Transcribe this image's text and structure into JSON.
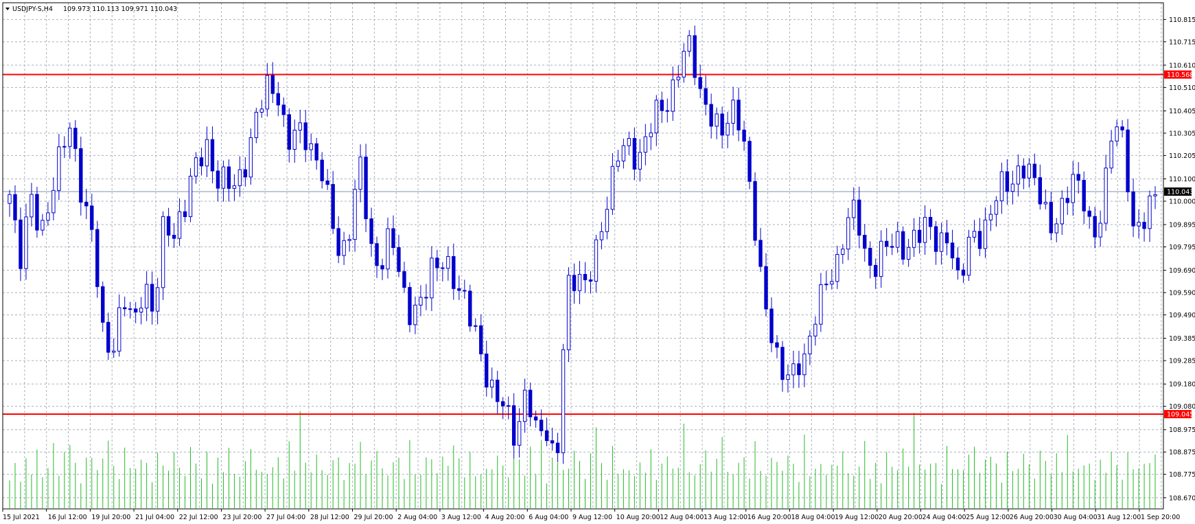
{
  "chart_data": {
    "type": "candlestick",
    "symbol_header": "USDJPY-S,H4",
    "ohlc_header": "109.973 110.113 109.971 110.043",
    "ylim": [
      108.62,
      110.89
    ],
    "y_ticks": [
      "110.815",
      "110.715",
      "110.610",
      "110.510",
      "110.405",
      "110.305",
      "110.205",
      "110.100",
      "110.000",
      "109.895",
      "109.795",
      "109.690",
      "109.590",
      "109.490",
      "109.385",
      "109.285",
      "109.180",
      "109.080",
      "108.975",
      "108.875",
      "108.775",
      "108.670"
    ],
    "x_labels": [
      "15 Jul 2021",
      "16 Jul 12:00",
      "19 Jul 20:00",
      "21 Jul 04:00",
      "22 Jul 12:00",
      "23 Jul 20:00",
      "27 Jul 04:00",
      "28 Jul 12:00",
      "29 Jul 20:00",
      "2 Aug 04:00",
      "3 Aug 12:00",
      "4 Aug 20:00",
      "6 Aug 04:00",
      "9 Aug 12:00",
      "10 Aug 20:00",
      "12 Aug 04:00",
      "13 Aug 12:00",
      "16 Aug 20:00",
      "18 Aug 04:00",
      "19 Aug 12:00",
      "20 Aug 20:00",
      "24 Aug 04:00",
      "25 Aug 12:00",
      "26 Aug 20:00",
      "30 Aug 04:00",
      "31 Aug 12:00",
      "1 Sep 20:00"
    ],
    "levels": [
      {
        "value": 110.568,
        "label": "110.568",
        "color": "#ff0000"
      },
      {
        "value": 109.045,
        "label": "109.045",
        "color": "#ff0000"
      }
    ],
    "current": {
      "value": 110.043,
      "label": "110.043",
      "color": "#8090b0"
    },
    "candle_color": "#0000cc",
    "volume_color": "#22bb22",
    "grid": true,
    "anchors": [
      110.0,
      109.75,
      110.05,
      109.8,
      110.05,
      110.25,
      110.3,
      110.05,
      109.85,
      109.4,
      109.35,
      109.55,
      109.45,
      109.65,
      109.45,
      109.95,
      109.85,
      109.95,
      110.2,
      110.25,
      110.05,
      110.15,
      110.05,
      110.15,
      110.45,
      110.5,
      110.45,
      110.3,
      110.3,
      110.25,
      110.2,
      109.95,
      109.75,
      109.9,
      110.15,
      109.8,
      109.7,
      109.85,
      109.65,
      109.45,
      109.55,
      109.75,
      109.7,
      109.65,
      109.6,
      109.4,
      109.25,
      109.15,
      109.05,
      108.95,
      109.15,
      108.95,
      109.0,
      108.8,
      109.6,
      109.7,
      109.6,
      109.8,
      110.05,
      110.2,
      110.25,
      110.2,
      110.3,
      110.45,
      110.45,
      110.6,
      110.75,
      110.45,
      110.35,
      110.35,
      110.4,
      110.3,
      110.0,
      109.55,
      109.35,
      109.25,
      109.2,
      109.3,
      109.5,
      109.6,
      109.7,
      109.9,
      109.95,
      109.75,
      109.7,
      109.8,
      109.85,
      109.75,
      109.85,
      109.95,
      109.75,
      109.85,
      109.65,
      109.8,
      109.85,
      109.95,
      110.05,
      110.1,
      110.15,
      110.1,
      110.05,
      109.85,
      109.95,
      110.15,
      110.0,
      109.8,
      110.05,
      110.35,
      110.25,
      109.85,
      109.9,
      110.05
    ],
    "volumes": [
      0.35,
      0.4,
      0.3,
      0.45,
      0.35,
      0.55,
      0.3,
      0.4,
      0.6,
      0.35,
      0.5,
      0.75,
      0.4,
      0.3,
      0.45,
      0.55,
      0.35,
      0.5,
      0.65,
      0.4,
      0.3,
      0.55,
      0.45,
      0.35,
      0.6,
      0.4,
      0.3,
      0.5,
      0.45,
      0.35,
      0.55,
      0.4,
      0.3,
      0.65,
      0.4,
      0.35,
      0.5,
      0.3,
      0.45,
      0.4,
      0.55,
      0.35,
      0.3,
      0.45,
      0.6,
      0.35,
      0.4,
      0.3,
      0.5,
      0.45,
      0.35,
      0.6,
      0.4,
      0.9,
      0.45,
      0.35,
      0.5,
      0.4,
      0.3,
      0.55,
      0.45,
      0.35,
      0.4,
      0.5,
      0.6,
      0.35,
      0.45,
      0.55,
      0.4,
      0.3,
      0.5,
      0.45,
      0.35,
      0.6,
      0.4,
      0.3,
      0.55,
      0.45,
      0.35,
      0.5,
      0.4,
      0.65,
      0.45,
      0.35,
      0.5,
      0.4,
      0.3,
      0.45,
      0.35,
      0.55,
      0.4,
      0.3,
      0.5,
      0.45,
      0.35,
      0.55,
      0.4,
      0.6,
      0.3,
      0.45,
      0.5,
      0.35,
      0.4,
      0.55,
      0.45,
      0.3,
      0.5,
      0.9,
      0.4,
      0.35,
      0.55,
      0.4
    ]
  }
}
